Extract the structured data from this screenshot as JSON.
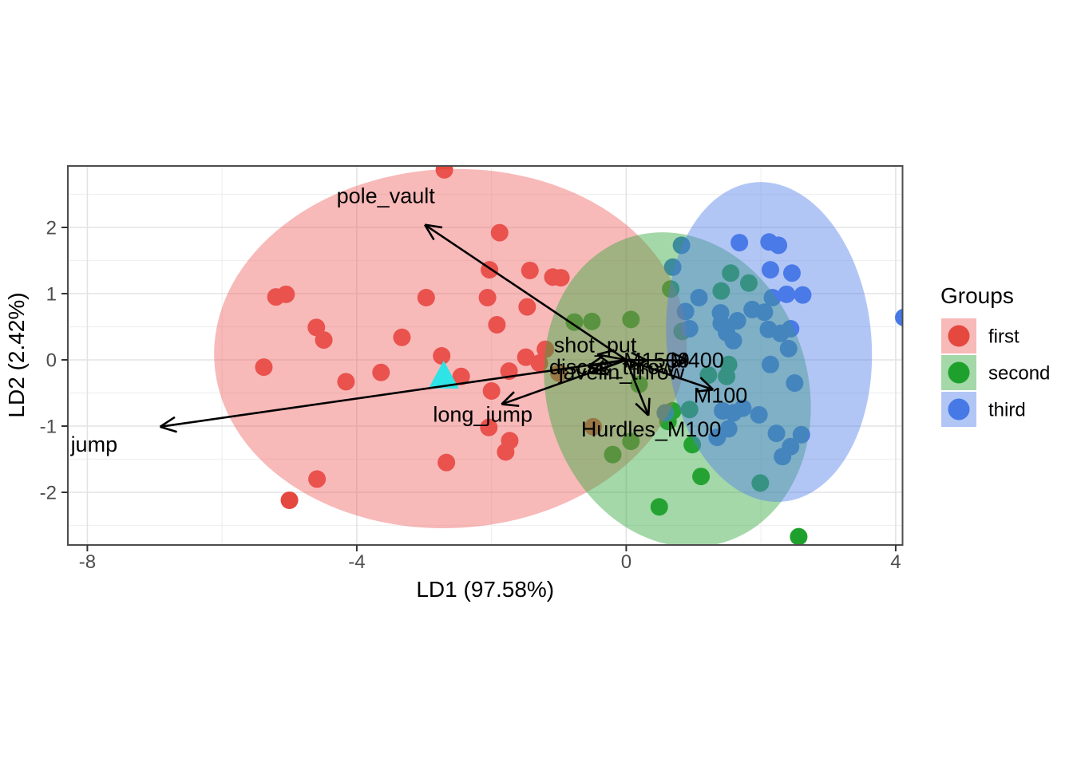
{
  "chart_data": {
    "type": "scatter",
    "title": "",
    "xlabel": "LD1 (97.58%)",
    "ylabel": "LD2 (2.42%)",
    "xlim": [
      -8.28,
      4.1
    ],
    "ylim": [
      -2.8,
      2.93
    ],
    "xticks": [
      -8,
      -4,
      0,
      4
    ],
    "yticks": [
      -2,
      -1,
      0,
      1,
      2
    ],
    "xminor": [
      -6,
      -2,
      2
    ],
    "yminor": [
      -2.5,
      -1.5,
      -0.5,
      0.5,
      1.5,
      2.5
    ],
    "grid": true,
    "legend": {
      "title": "Groups",
      "position": "right",
      "entries": [
        {
          "label": "first",
          "point_color": "#E4483F",
          "key_fill": "#EE5F5F"
        },
        {
          "label": "second",
          "point_color": "#1EA12C",
          "key_fill": "#2FA73C"
        },
        {
          "label": "third",
          "point_color": "#4678E6",
          "key_fill": "#507DEB"
        }
      ]
    },
    "ellipse_alpha": 0.44,
    "groups": [
      {
        "name": "first",
        "point_color": "#E4483F",
        "ellipse_fill": "#EE5F5F",
        "ellipse": {
          "cx": -2.61,
          "cy": 0.17,
          "rx": 3.51,
          "ry": 2.71,
          "rot": -3
        },
        "points": [
          [
            -2.7,
            2.87
          ],
          [
            -1.88,
            1.92
          ],
          [
            -2.97,
            0.94
          ],
          [
            -1.43,
            1.35
          ],
          [
            -1.09,
            1.25
          ],
          [
            -0.97,
            1.24
          ],
          [
            -2.06,
            0.94
          ],
          [
            -1.47,
            0.8
          ],
          [
            -1.92,
            0.53
          ],
          [
            -3.33,
            0.34
          ],
          [
            -4.6,
            0.49
          ],
          [
            -4.49,
            0.3
          ],
          [
            -5.2,
            0.95
          ],
          [
            -5.05,
            0.99
          ],
          [
            -5.38,
            -0.11
          ],
          [
            -4.16,
            -0.33
          ],
          [
            -3.64,
            -0.19
          ],
          [
            -2.74,
            0.06
          ],
          [
            -2.45,
            -0.25
          ],
          [
            -2.03,
            1.36
          ],
          [
            -1.74,
            -0.17
          ],
          [
            -2.0,
            -0.47
          ],
          [
            -2.04,
            -1.02
          ],
          [
            -2.67,
            -1.55
          ],
          [
            -1.73,
            -1.22
          ],
          [
            -1.79,
            -1.39
          ],
          [
            -4.59,
            -1.8
          ],
          [
            -5.0,
            -2.12
          ],
          [
            -1.29,
            -0.05
          ],
          [
            -1.2,
            0.16
          ],
          [
            -0.49,
            -1.01
          ],
          [
            -1.0,
            -0.2
          ],
          [
            -1.49,
            0.04
          ]
        ]
      },
      {
        "name": "second",
        "point_color": "#1EA12C",
        "ellipse_fill": "#2FA73C",
        "ellipse": {
          "cx": 0.76,
          "cy": -0.45,
          "rx": 1.94,
          "ry": 2.41,
          "rot": -17
        },
        "points": [
          [
            -0.77,
            0.57
          ],
          [
            -0.51,
            0.58
          ],
          [
            0.07,
            0.61
          ],
          [
            0.19,
            -0.37
          ],
          [
            0.07,
            -1.23
          ],
          [
            -0.2,
            -1.43
          ],
          [
            0.49,
            -2.22
          ],
          [
            1.11,
            -1.76
          ],
          [
            2.56,
            -2.67
          ],
          [
            1.55,
            1.31
          ],
          [
            1.41,
            1.04
          ],
          [
            0.66,
            1.07
          ],
          [
            1.82,
            1.16
          ],
          [
            0.83,
            0.43
          ],
          [
            1.52,
            -0.07
          ],
          [
            1.22,
            -0.23
          ],
          [
            1.49,
            -0.25
          ],
          [
            0.69,
            -0.77
          ],
          [
            0.94,
            -0.75
          ],
          [
            0.62,
            -0.93
          ],
          [
            0.98,
            -1.28
          ],
          [
            1.99,
            -1.86
          ]
        ]
      },
      {
        "name": "third",
        "point_color": "#4678E6",
        "ellipse_fill": "#507DEB",
        "ellipse": {
          "cx": 2.12,
          "cy": 0.27,
          "rx": 1.52,
          "ry": 2.42,
          "rot": -5
        },
        "points": [
          [
            0.82,
            1.73
          ],
          [
            0.69,
            1.4
          ],
          [
            1.68,
            1.77
          ],
          [
            2.12,
            1.78
          ],
          [
            2.26,
            1.73
          ],
          [
            2.14,
            1.36
          ],
          [
            2.46,
            1.31
          ],
          [
            2.17,
            0.94
          ],
          [
            2.38,
            0.99
          ],
          [
            2.62,
            0.98
          ],
          [
            0.88,
            0.73
          ],
          [
            1.08,
            0.94
          ],
          [
            1.41,
            0.55
          ],
          [
            1.49,
            0.41
          ],
          [
            0.94,
            0.47
          ],
          [
            1.4,
            0.71
          ],
          [
            1.65,
            0.59
          ],
          [
            1.59,
            0.29
          ],
          [
            1.87,
            0.76
          ],
          [
            2.05,
            0.72
          ],
          [
            2.11,
            0.46
          ],
          [
            2.29,
            0.4
          ],
          [
            2.44,
            0.47
          ],
          [
            2.41,
            0.17
          ],
          [
            2.14,
            -0.07
          ],
          [
            2.5,
            -0.35
          ],
          [
            1.59,
            -0.8
          ],
          [
            1.73,
            -0.73
          ],
          [
            1.97,
            -0.83
          ],
          [
            2.23,
            -1.11
          ],
          [
            2.6,
            -1.13
          ],
          [
            2.44,
            -1.31
          ],
          [
            2.32,
            -1.46
          ],
          [
            1.35,
            -1.17
          ],
          [
            0.58,
            -0.8
          ],
          [
            1.43,
            -0.77
          ],
          [
            1.52,
            -1.04
          ],
          [
            4.12,
            0.64
          ]
        ]
      }
    ],
    "centroid_marker": {
      "shape": "triangle",
      "color": "#2EE4E6",
      "x": -2.71,
      "y": -0.24
    },
    "loadings_origin": [
      0,
      0
    ],
    "loadings": [
      {
        "label": "pole_vault",
        "tip": [
          -2.99,
          2.04
        ],
        "label_pos": [
          -3.57,
          2.48
        ]
      },
      {
        "label": "jump",
        "tip": [
          -6.92,
          -1.01
        ],
        "label_pos": [
          -7.9,
          -1.27
        ]
      },
      {
        "label": "long_jump",
        "tip": [
          -1.85,
          -0.67
        ],
        "label_pos": [
          -2.13,
          -0.82
        ]
      },
      {
        "label": "shot_put",
        "tip": [
          -0.43,
          0.08
        ],
        "label_pos": [
          -0.46,
          0.23
        ]
      },
      {
        "label": "discus_throw",
        "tip": [
          -0.57,
          -0.1
        ],
        "label_pos": [
          -0.21,
          -0.1
        ]
      },
      {
        "label": "javelin_throw",
        "tip": [
          -0.52,
          -0.2
        ],
        "label_pos": [
          -0.07,
          -0.18
        ]
      },
      {
        "label": "M1500",
        "tip": [
          0.31,
          -0.01
        ],
        "label_pos": [
          0.45,
          0.0
        ]
      },
      {
        "label": "M400",
        "tip": [
          0.92,
          -0.01
        ],
        "label_pos": [
          1.05,
          0.0
        ]
      },
      {
        "label": "M100",
        "tip": [
          1.29,
          -0.45
        ],
        "label_pos": [
          1.4,
          -0.53
        ]
      },
      {
        "label": "Hurdles_M100",
        "tip": [
          0.33,
          -0.84
        ],
        "label_pos": [
          0.37,
          -1.04
        ]
      }
    ],
    "colors": {
      "panel_border": "#4D4D4D",
      "grid_major": "#E3E3E3",
      "grid_minor": "#F0F0F0",
      "tick_text": "#4D4D4D",
      "axis_title": "#000000",
      "arrow": "#000000",
      "label_text": "#000000",
      "background": "#FFFFFF"
    }
  }
}
